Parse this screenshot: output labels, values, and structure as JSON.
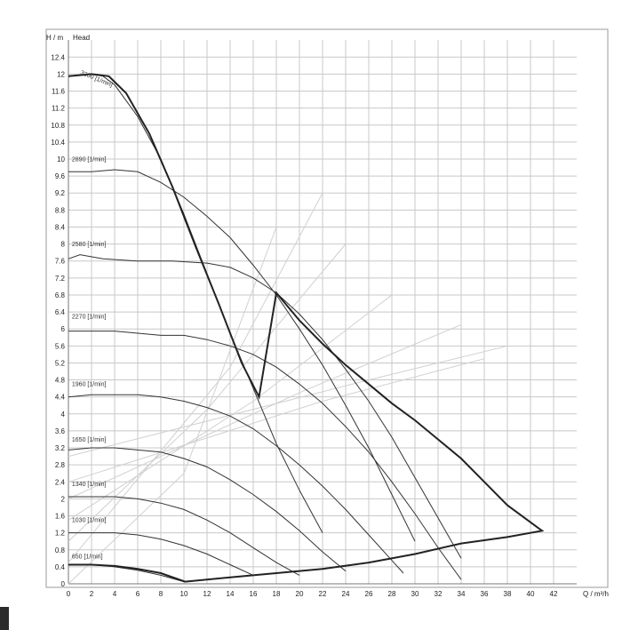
{
  "chart_data": {
    "type": "line",
    "title": "",
    "xlabel": "Q / m³/h",
    "ylabel": "H / m",
    "ylabel_note": "Head",
    "xlim": [
      0,
      44
    ],
    "ylim": [
      0,
      12.8
    ],
    "grid": true,
    "x_ticks": [
      0,
      2,
      4,
      6,
      8,
      10,
      12,
      14,
      16,
      18,
      20,
      22,
      24,
      26,
      28,
      30,
      32,
      34,
      36,
      38,
      40,
      42
    ],
    "y_ticks": [
      0,
      0.4,
      0.8,
      1.2,
      1.6,
      2,
      2.4,
      2.8,
      3.2,
      3.6,
      4,
      4.4,
      4.8,
      5.2,
      5.6,
      6,
      6.4,
      6.8,
      7.2,
      7.6,
      8,
      8.4,
      8.8,
      9.2,
      9.6,
      10,
      10.4,
      10.8,
      11.2,
      11.6,
      12,
      12.4
    ],
    "colors": {
      "curve": "#333333",
      "envelope": "#222222",
      "grid": "#c8c8c8",
      "system": "#d0d0d0"
    },
    "series": [
      {
        "name": "3200 [1/min]",
        "label_at": [
          1,
          12.0
        ],
        "label_rotated": true,
        "points": [
          [
            0,
            11.95
          ],
          [
            2,
            12.0
          ],
          [
            3,
            11.95
          ],
          [
            4,
            11.75
          ],
          [
            6,
            11.0
          ],
          [
            8,
            10.0
          ],
          [
            10,
            8.7
          ],
          [
            12,
            7.3
          ],
          [
            14,
            5.9
          ],
          [
            16,
            4.6
          ],
          [
            18,
            3.3
          ],
          [
            20,
            2.2
          ],
          [
            22,
            1.2
          ]
        ]
      },
      {
        "name": "2890 [1/min]",
        "label_at": [
          0.3,
          9.95
        ],
        "points": [
          [
            0,
            9.7
          ],
          [
            2,
            9.7
          ],
          [
            4,
            9.75
          ],
          [
            6,
            9.7
          ],
          [
            8,
            9.45
          ],
          [
            10,
            9.1
          ],
          [
            12,
            8.65
          ],
          [
            14,
            8.15
          ],
          [
            16,
            7.5
          ],
          [
            18,
            6.8
          ],
          [
            20,
            6.0
          ],
          [
            22,
            5.15
          ],
          [
            24,
            4.2
          ],
          [
            26,
            3.2
          ],
          [
            28,
            2.1
          ],
          [
            30,
            1.0
          ]
        ]
      },
      {
        "name": "2580 [1/min]",
        "label_at": [
          0.3,
          7.95
        ],
        "points": [
          [
            0,
            7.65
          ],
          [
            1,
            7.75
          ],
          [
            3,
            7.65
          ],
          [
            6,
            7.6
          ],
          [
            9,
            7.6
          ],
          [
            12,
            7.55
          ],
          [
            14,
            7.45
          ],
          [
            16,
            7.2
          ],
          [
            18,
            6.85
          ],
          [
            20,
            6.35
          ],
          [
            22,
            5.75
          ],
          [
            24,
            5.05
          ],
          [
            26,
            4.3
          ],
          [
            28,
            3.45
          ],
          [
            30,
            2.5
          ],
          [
            32,
            1.55
          ],
          [
            34,
            0.6
          ]
        ]
      },
      {
        "name": "2270 [1/min]",
        "label_at": [
          0.3,
          6.25
        ],
        "points": [
          [
            0,
            5.95
          ],
          [
            2,
            5.95
          ],
          [
            4,
            5.95
          ],
          [
            6,
            5.9
          ],
          [
            8,
            5.85
          ],
          [
            10,
            5.85
          ],
          [
            12,
            5.75
          ],
          [
            14,
            5.6
          ],
          [
            16,
            5.4
          ],
          [
            18,
            5.1
          ],
          [
            20,
            4.7
          ],
          [
            22,
            4.25
          ],
          [
            24,
            3.7
          ],
          [
            26,
            3.1
          ],
          [
            28,
            2.4
          ],
          [
            30,
            1.65
          ],
          [
            32,
            0.85
          ],
          [
            34,
            0.1
          ]
        ]
      },
      {
        "name": "1960 [1/min]",
        "label_at": [
          0.3,
          4.65
        ],
        "points": [
          [
            0,
            4.4
          ],
          [
            2,
            4.45
          ],
          [
            4,
            4.45
          ],
          [
            6,
            4.45
          ],
          [
            8,
            4.4
          ],
          [
            10,
            4.3
          ],
          [
            12,
            4.15
          ],
          [
            14,
            3.95
          ],
          [
            16,
            3.65
          ],
          [
            18,
            3.25
          ],
          [
            20,
            2.8
          ],
          [
            22,
            2.3
          ],
          [
            24,
            1.75
          ],
          [
            26,
            1.15
          ],
          [
            28,
            0.55
          ],
          [
            29,
            0.25
          ]
        ]
      },
      {
        "name": "1650 [1/min]",
        "label_at": [
          0.3,
          3.35
        ],
        "points": [
          [
            0,
            3.15
          ],
          [
            2,
            3.2
          ],
          [
            4,
            3.2
          ],
          [
            6,
            3.15
          ],
          [
            8,
            3.1
          ],
          [
            10,
            2.95
          ],
          [
            12,
            2.75
          ],
          [
            14,
            2.45
          ],
          [
            16,
            2.1
          ],
          [
            18,
            1.7
          ],
          [
            20,
            1.25
          ],
          [
            22,
            0.75
          ],
          [
            24,
            0.3
          ]
        ]
      },
      {
        "name": "1340 [1/min]",
        "label_at": [
          0.3,
          2.3
        ],
        "points": [
          [
            0,
            2.05
          ],
          [
            2,
            2.05
          ],
          [
            4,
            2.05
          ],
          [
            6,
            2.0
          ],
          [
            8,
            1.9
          ],
          [
            10,
            1.75
          ],
          [
            12,
            1.5
          ],
          [
            14,
            1.2
          ],
          [
            16,
            0.85
          ],
          [
            18,
            0.5
          ],
          [
            20,
            0.2
          ]
        ]
      },
      {
        "name": "1030 [1/min]",
        "label_at": [
          0.3,
          1.45
        ],
        "points": [
          [
            0,
            1.2
          ],
          [
            2,
            1.2
          ],
          [
            4,
            1.2
          ],
          [
            6,
            1.15
          ],
          [
            8,
            1.05
          ],
          [
            10,
            0.9
          ],
          [
            12,
            0.7
          ],
          [
            14,
            0.45
          ],
          [
            16,
            0.2
          ]
        ]
      },
      {
        "name": "650 [1/min]",
        "label_at": [
          0.3,
          0.6
        ],
        "points": [
          [
            0,
            0.45
          ],
          [
            2,
            0.45
          ],
          [
            4,
            0.4
          ],
          [
            6,
            0.32
          ],
          [
            8,
            0.2
          ],
          [
            10,
            0.05
          ]
        ]
      }
    ],
    "envelope": [
      [
        0,
        11.95
      ],
      [
        2,
        12.0
      ],
      [
        3,
        11.95
      ],
      [
        4,
        11.75
      ],
      [
        6,
        11.0
      ],
      [
        8,
        10.0
      ],
      [
        10,
        8.7
      ],
      [
        12,
        7.3
      ],
      [
        14,
        5.9
      ],
      [
        16,
        4.6
      ],
      [
        18,
        3.3
      ],
      [
        20,
        2.2
      ],
      [
        22,
        1.2
      ],
      [
        24,
        4.3
      ],
      [
        26,
        4.7
      ],
      [
        28,
        4.3
      ],
      [
        30,
        3.85
      ],
      [
        32,
        3.4
      ],
      [
        34,
        2.95
      ],
      [
        36,
        2.35
      ],
      [
        38,
        1.75
      ],
      [
        41,
        1.2
      ],
      [
        10.1,
        0.05
      ],
      [
        0,
        0.45
      ]
    ],
    "envelope_outline": [
      [
        0,
        11.95
      ],
      [
        2,
        12.0
      ],
      [
        3.5,
        11.95
      ],
      [
        5,
        11.55
      ],
      [
        7,
        10.6
      ],
      [
        9,
        9.35
      ],
      [
        11,
        7.95
      ],
      [
        13,
        6.6
      ],
      [
        15,
        5.2
      ],
      [
        16.5,
        4.4
      ],
      [
        18,
        6.85
      ],
      [
        20,
        6.2
      ],
      [
        22,
        5.65
      ],
      [
        24,
        5.15
      ],
      [
        26,
        4.7
      ],
      [
        28,
        4.25
      ],
      [
        30,
        3.85
      ],
      [
        32,
        3.4
      ],
      [
        34,
        2.95
      ],
      [
        36,
        2.4
      ],
      [
        38,
        1.85
      ],
      [
        41,
        1.25
      ],
      [
        38,
        1.1
      ],
      [
        34,
        0.95
      ],
      [
        30,
        0.7
      ],
      [
        26,
        0.5
      ],
      [
        22,
        0.35
      ],
      [
        18,
        0.25
      ],
      [
        14,
        0.15
      ],
      [
        10.1,
        0.05
      ],
      [
        8,
        0.25
      ],
      [
        6,
        0.35
      ],
      [
        4,
        0.42
      ],
      [
        2,
        0.45
      ],
      [
        0,
        0.45
      ]
    ],
    "system_curves": [
      {
        "points": [
          [
            0,
            0.0
          ],
          [
            10,
            2.6
          ],
          [
            18,
            8.4
          ]
        ]
      },
      {
        "points": [
          [
            0,
            0.5
          ],
          [
            14,
            5.1
          ],
          [
            22,
            9.2
          ]
        ]
      },
      {
        "points": [
          [
            0,
            1.0
          ],
          [
            12,
            4.1
          ],
          [
            24,
            8.0
          ]
        ]
      },
      {
        "points": [
          [
            0,
            1.5
          ],
          [
            16,
            4.3
          ],
          [
            28,
            6.8
          ]
        ]
      },
      {
        "points": [
          [
            0,
            2.0
          ],
          [
            20,
            4.5
          ],
          [
            34,
            6.1
          ]
        ]
      },
      {
        "points": [
          [
            0,
            2.4
          ],
          [
            22,
            4.3
          ],
          [
            36,
            5.3
          ]
        ]
      },
      {
        "points": [
          [
            0,
            3.0
          ],
          [
            26,
            4.8
          ],
          [
            38,
            5.6
          ]
        ]
      }
    ]
  }
}
